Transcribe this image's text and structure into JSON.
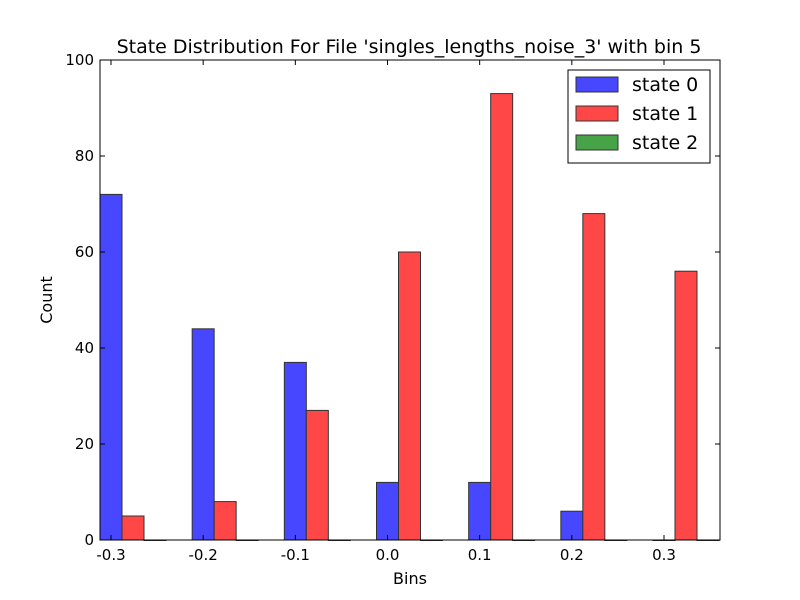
{
  "chart_data": {
    "type": "bar",
    "title": "State Distribution For File 'singles_lengths_noise_3' with bin 5",
    "xlabel": "Bins",
    "ylabel": "Count",
    "categories": [
      "-0.3",
      "-0.2",
      "-0.1",
      "0.0",
      "0.1",
      "0.2",
      "0.3"
    ],
    "ylim": [
      0,
      100
    ],
    "yticks": [
      "0",
      "20",
      "40",
      "60",
      "80",
      "100"
    ],
    "grid": false,
    "legend_position": "top-right",
    "series": [
      {
        "name": "state 0",
        "color": "#4747ff",
        "values": [
          72,
          44,
          37,
          12,
          12,
          6,
          0
        ]
      },
      {
        "name": "state 1",
        "color": "#ff4747",
        "values": [
          5,
          8,
          27,
          60,
          93,
          68,
          56
        ]
      },
      {
        "name": "state 2",
        "color": "#47a347",
        "values": [
          0,
          0,
          0,
          0,
          0,
          0,
          0
        ]
      }
    ]
  }
}
